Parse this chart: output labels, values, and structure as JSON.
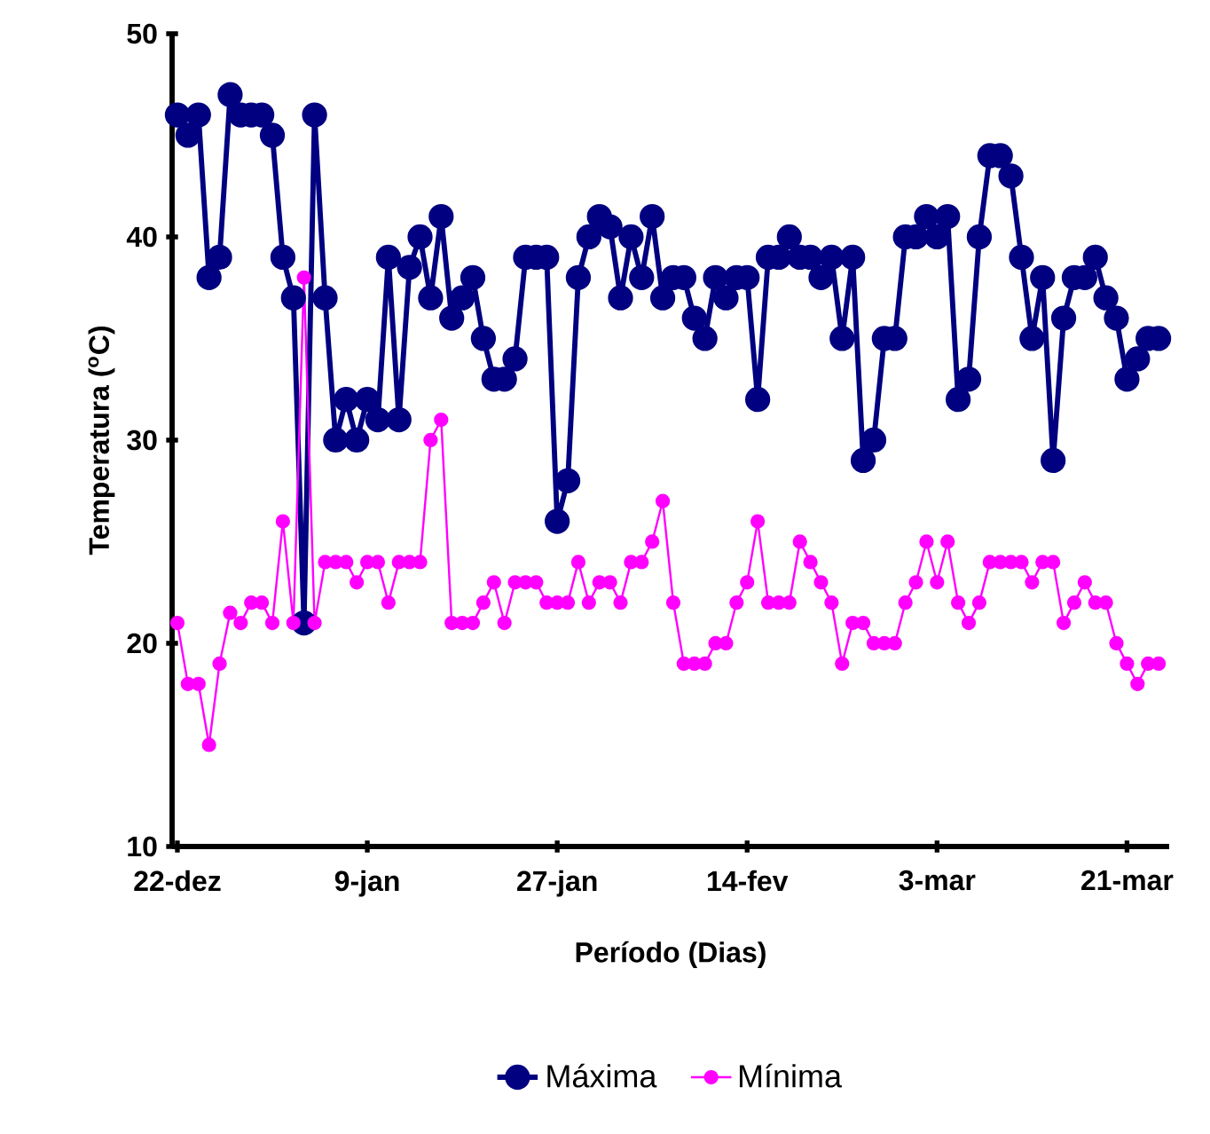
{
  "chart_data": {
    "type": "line",
    "xlabel": "Período (Dias)",
    "ylabel": "Temperatura ($^{o}$C)",
    "categories": [
      "22-dez",
      null,
      null,
      null,
      null,
      null,
      null,
      null,
      null,
      null,
      null,
      null,
      null,
      null,
      null,
      null,
      null,
      null,
      "9-jan",
      null,
      null,
      null,
      null,
      null,
      null,
      null,
      null,
      null,
      null,
      null,
      null,
      null,
      null,
      null,
      null,
      null,
      "27-jan",
      null,
      null,
      null,
      null,
      null,
      null,
      null,
      null,
      null,
      null,
      null,
      null,
      null,
      null,
      null,
      null,
      null,
      "14-fev",
      null,
      null,
      null,
      null,
      null,
      null,
      null,
      null,
      null,
      null,
      null,
      null,
      null,
      null,
      null,
      null,
      null,
      "3-mar",
      null,
      null,
      null,
      null,
      null,
      null,
      null,
      null,
      null,
      null,
      null,
      null,
      null,
      null,
      null,
      null,
      null,
      "21-mar",
      null,
      null,
      null
    ],
    "series": [
      {
        "name": "Máxima",
        "color": "#000080",
        "values": [
          46,
          45,
          46,
          38,
          39,
          47,
          46,
          46,
          46,
          45,
          39,
          37,
          21,
          46,
          37,
          30,
          32,
          30,
          32,
          31,
          39,
          31,
          38.5,
          40,
          37,
          41,
          36,
          37,
          38,
          35,
          33,
          33,
          34,
          39,
          39,
          39,
          26,
          28,
          38,
          40,
          41,
          40.5,
          37,
          40,
          38,
          41,
          37,
          38,
          38,
          36,
          35,
          38,
          37,
          38,
          38,
          32,
          39,
          39,
          40,
          39,
          39,
          38,
          39,
          35,
          39,
          29,
          30,
          35,
          35,
          40,
          40,
          41,
          40,
          41,
          32,
          33,
          40,
          44,
          44,
          43,
          39,
          35,
          38,
          29,
          36,
          38,
          38,
          39,
          37,
          36,
          33,
          34,
          35,
          35
        ]
      },
      {
        "name": "Mínima",
        "color": "#ff00ff",
        "values": [
          21,
          18,
          18,
          15,
          19,
          21.5,
          21,
          22,
          22,
          21,
          26,
          21,
          38,
          21,
          24,
          24,
          24,
          23,
          24,
          24,
          22,
          24,
          24,
          24,
          30,
          31,
          21,
          21,
          21,
          22,
          23,
          21,
          23,
          23,
          23,
          22,
          22,
          22,
          24,
          22,
          23,
          23,
          22,
          24,
          24,
          25,
          27,
          22,
          19,
          19,
          19,
          20,
          20,
          22,
          23,
          26,
          22,
          22,
          22,
          25,
          24,
          23,
          22,
          19,
          21,
          21,
          20,
          20,
          20,
          22,
          23,
          25,
          23,
          25,
          22,
          21,
          22,
          24,
          24,
          24,
          24,
          23,
          24,
          24,
          21,
          22,
          23,
          22,
          22,
          20,
          19,
          18,
          19,
          19
        ]
      }
    ],
    "ylim": [
      10,
      50
    ],
    "yticks": [
      10,
      20,
      30,
      40,
      50
    ],
    "marker": "circle",
    "line_style": "solid",
    "grid": false,
    "legend": "bottom"
  }
}
